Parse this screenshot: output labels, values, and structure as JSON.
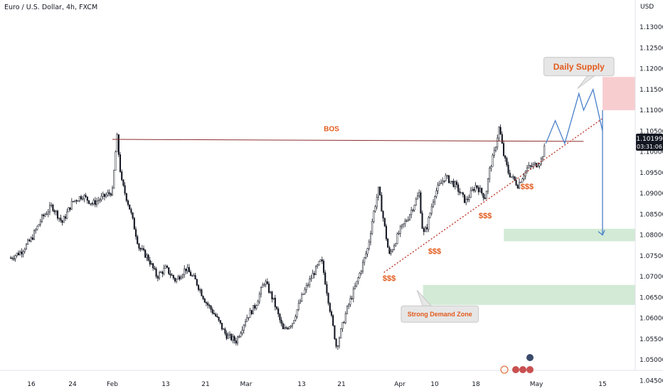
{
  "symbol_title": "Euro / U.S. Dollar, 4h, FXCM",
  "currency": "USD",
  "chart_data": {
    "type": "candlestick",
    "title": "Euro / U.S. Dollar, 4h, FXCM",
    "ylim": [
      1.0425,
      1.1365
    ],
    "y_ticks": [
      "1.13000",
      "1.12500",
      "1.12000",
      "1.11500",
      "1.11000",
      "1.10500",
      "1.10000",
      "1.09500",
      "1.09000",
      "1.08500",
      "1.08000",
      "1.07500",
      "1.07000",
      "1.06500",
      "1.06000",
      "1.05500",
      "1.05000",
      "1.04500"
    ],
    "x_ticks": [
      "16",
      "24",
      "Feb",
      "13",
      "21",
      "Mar",
      "13",
      "21",
      "Apr",
      "10",
      "18",
      "May",
      "15"
    ],
    "last_price": "1.10199",
    "countdown": "03:31:06",
    "price_path": [
      [
        "Jan 12",
        1.0745
      ],
      [
        "Jan 14",
        1.076
      ],
      [
        "Jan 16",
        1.079
      ],
      [
        "Jan 18",
        1.084
      ],
      [
        "Jan 20",
        1.087
      ],
      [
        "Jan 22",
        1.083
      ],
      [
        "Jan 24",
        1.088
      ],
      [
        "Jan 26",
        1.0895
      ],
      [
        "Jan 28",
        1.0875
      ],
      [
        "Jan 30",
        1.089
      ],
      [
        "Feb 1",
        1.0905
      ],
      [
        "Feb 2",
        1.104
      ],
      [
        "Feb 3",
        1.093
      ],
      [
        "Feb 5",
        1.086
      ],
      [
        "Feb 7",
        1.077
      ],
      [
        "Feb 9",
        1.0745
      ],
      [
        "Feb 11",
        1.07
      ],
      [
        "Feb 13",
        1.072
      ],
      [
        "Feb 15",
        1.069
      ],
      [
        "Feb 17",
        1.072
      ],
      [
        "Feb 19",
        1.069
      ],
      [
        "Feb 21",
        1.064
      ],
      [
        "Feb 23",
        1.0605
      ],
      [
        "Feb 25",
        1.056
      ],
      [
        "Feb 27",
        1.0545
      ],
      [
        "Mar 1",
        1.06
      ],
      [
        "Mar 3",
        1.063
      ],
      [
        "Mar 5",
        1.069
      ],
      [
        "Mar 7",
        1.064
      ],
      [
        "Mar 9",
        1.057
      ],
      [
        "Mar 11",
        1.059
      ],
      [
        "Mar 13",
        1.065
      ],
      [
        "Mar 15",
        1.07
      ],
      [
        "Mar 17",
        1.074
      ],
      [
        "Mar 19",
        1.06
      ],
      [
        "Mar 20",
        1.053
      ],
      [
        "Mar 22",
        1.062
      ],
      [
        "Mar 24",
        1.069
      ],
      [
        "Mar 26",
        1.077
      ],
      [
        "Mar 27",
        1.085
      ],
      [
        "Mar 28",
        1.091
      ],
      [
        "Mar 29",
        1.083
      ],
      [
        "Mar 30",
        1.075
      ],
      [
        "Apr 1",
        1.081
      ],
      [
        "Apr 3",
        1.084
      ],
      [
        "Apr 5",
        1.088
      ],
      [
        "Apr 6",
        1.09
      ],
      [
        "Apr 7",
        1.08
      ],
      [
        "Apr 8",
        1.082
      ],
      [
        "Apr 10",
        1.09
      ],
      [
        "Apr 12",
        1.094
      ],
      [
        "Apr 14",
        1.092
      ],
      [
        "Apr 16",
        1.088
      ],
      [
        "Apr 18",
        1.092
      ],
      [
        "Apr 20",
        1.089
      ],
      [
        "Apr 21",
        1.096
      ],
      [
        "Apr 22",
        1.1
      ],
      [
        "Apr 23",
        1.106
      ],
      [
        "Apr 24",
        1.099
      ],
      [
        "Apr 25",
        1.095
      ],
      [
        "Apr 27",
        1.092
      ],
      [
        "Apr 29",
        1.096
      ],
      [
        "May 1",
        1.097
      ],
      [
        "May 2",
        1.098
      ],
      [
        "May 3",
        1.102
      ]
    ],
    "projection": [
      [
        "May 3",
        1.102
      ],
      [
        "May 5",
        1.1075
      ],
      [
        "May 7",
        1.102
      ],
      [
        "May 10",
        1.114
      ],
      [
        "May 11",
        1.11
      ],
      [
        "May 13",
        1.115
      ],
      [
        "May 16",
        1.105
      ],
      [
        "May 18",
        1.11
      ],
      [
        "May 29",
        1.08
      ]
    ],
    "trendline": [
      [
        "Mar 29",
        1.071
      ],
      [
        "May 24",
        1.108
      ]
    ],
    "bos_line": [
      [
        "Feb 1",
        1.103
      ],
      [
        "May 11",
        1.1025
      ]
    ],
    "zones": [
      {
        "name": "Daily Supply",
        "x_from": "May 16",
        "x_to": "end",
        "y_from": 1.11,
        "y_to": 1.118,
        "color": "#f7cdd0"
      },
      {
        "name": "demand-upper",
        "x_from": "Apr 24",
        "x_to": "end",
        "y_from": 1.0785,
        "y_to": 1.0815,
        "color": "#d2ead6"
      },
      {
        "name": "Strong Demand Zone",
        "x_from": "Apr 7",
        "x_to": "end",
        "y_from": 1.0632,
        "y_to": 1.068,
        "color": "#d2ead6"
      }
    ],
    "annotations": [
      {
        "text": "BOS",
        "x": "Mar 19",
        "y": 1.105,
        "size": 10
      },
      {
        "text": "$$$",
        "x": "Mar 30",
        "y": 1.069,
        "size": 11
      },
      {
        "text": "$$$",
        "x": "Apr 10",
        "y": 1.0755,
        "size": 11
      },
      {
        "text": "$$$",
        "x": "Apr 20",
        "y": 1.084,
        "size": 11
      },
      {
        "text": "$$$",
        "x": "Apr 29",
        "y": 1.091,
        "size": 11
      }
    ],
    "callouts": [
      {
        "text": "Daily Supply",
        "x": "May 10",
        "y": 1.1205,
        "size": 12
      },
      {
        "text": "Strong Demand Zone",
        "x": "Apr 11",
        "y": 1.061,
        "size": 9
      }
    ],
    "colors": {
      "candle": "#131722",
      "bos": "#8b2d2d",
      "trend": "#c0392b",
      "projection": "#4a80c9",
      "anno": "#e35a1c"
    }
  }
}
